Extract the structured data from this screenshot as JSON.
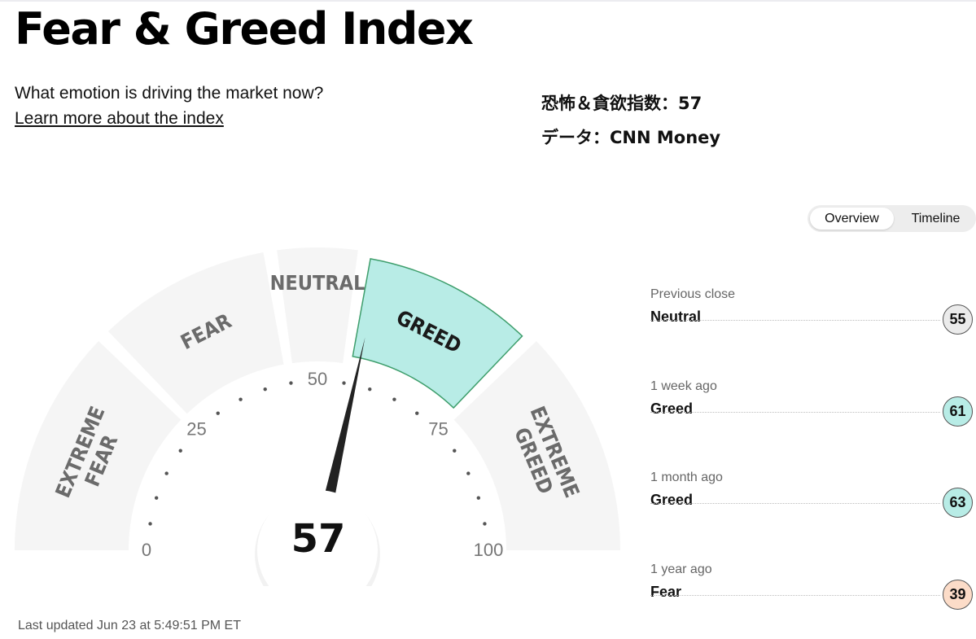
{
  "header": {
    "title": "Fear & Greed Index",
    "subtitle": "What emotion is driving the market now?",
    "learn_more": "Learn more about the index"
  },
  "annotation": {
    "index_line": "恐怖＆貪欲指数：57",
    "source_line": "データ：CNN Money"
  },
  "view_toggle": {
    "options": [
      "Overview",
      "Timeline"
    ],
    "selected": "Overview"
  },
  "gauge": {
    "value": 57,
    "min": 0,
    "max": 100,
    "ticks": [
      "0",
      "25",
      "50",
      "75",
      "100"
    ],
    "active_zone": "GREED",
    "zones": [
      {
        "lines": [
          "EXTREME",
          "FEAR"
        ],
        "from": 0,
        "to": 25
      },
      {
        "lines": [
          "FEAR"
        ],
        "from": 25,
        "to": 45
      },
      {
        "lines": [
          "NEUTRAL"
        ],
        "from": 45,
        "to": 55
      },
      {
        "lines": [
          "GREED"
        ],
        "from": 55,
        "to": 75
      },
      {
        "lines": [
          "EXTREME",
          "GREED"
        ],
        "from": 75,
        "to": 100
      }
    ],
    "colors": {
      "zone": "#f5f5f5",
      "active_fill": "#b8ece6",
      "active_stroke": "#3e9e6c",
      "needle": "#222222"
    }
  },
  "last_updated": "Last updated Jun 23 at 5:49:51 PM ET",
  "history": [
    {
      "period": "Previous close",
      "label": "Neutral",
      "value": "55",
      "color": "#ebebeb"
    },
    {
      "period": "1 week ago",
      "label": "Greed",
      "value": "61",
      "color": "#b8ece6"
    },
    {
      "period": "1 month ago",
      "label": "Greed",
      "value": "63",
      "color": "#b8ece6"
    },
    {
      "period": "1 year ago",
      "label": "Fear",
      "value": "39",
      "color": "#fcdcc8"
    }
  ]
}
